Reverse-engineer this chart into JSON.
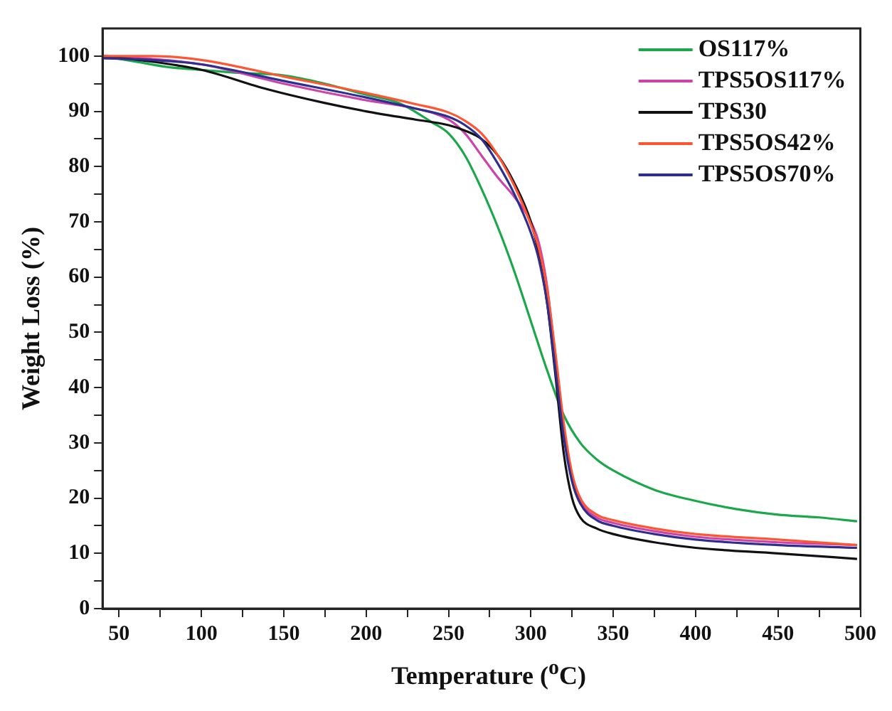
{
  "chart_data": {
    "type": "line",
    "xlabel": "Temperature ($^{o}$C)",
    "ylabel": "Weight Loss (%)",
    "xlim": [
      40,
      500
    ],
    "ylim": [
      0,
      105
    ],
    "xticks": [
      50,
      {
        "value": 75,
        "label": null
      },
      100,
      {
        "value": 125,
        "label": null
      },
      150,
      {
        "value": 175,
        "label": null
      },
      200,
      {
        "value": 225,
        "label": null
      },
      250,
      {
        "value": 275,
        "label": null
      },
      300,
      {
        "value": 325,
        "label": null
      },
      350,
      {
        "value": 375,
        "label": null
      },
      400,
      {
        "value": 425,
        "label": null
      },
      450,
      {
        "value": 475,
        "label": null
      },
      500
    ],
    "yticks": [
      0,
      {
        "value": 5,
        "label": null
      },
      10,
      {
        "value": 15,
        "label": null
      },
      20,
      {
        "value": 25,
        "label": null
      },
      30,
      {
        "value": 35,
        "label": null
      },
      40,
      {
        "value": 45,
        "label": null
      },
      50,
      {
        "value": 55,
        "label": null
      },
      60,
      {
        "value": 65,
        "label": null
      },
      70,
      {
        "value": 75,
        "label": null
      },
      80,
      {
        "value": 85,
        "label": null
      },
      90,
      {
        "value": 95,
        "label": null
      },
      100
    ],
    "grid": false,
    "legend": "top right",
    "marker": "none",
    "line_style": "solid",
    "series": [
      {
        "name": "OS117%",
        "color": "#1aa84a",
        "x": [
          40,
          60,
          80,
          100,
          120,
          150,
          175,
          200,
          220,
          240,
          250,
          260,
          270,
          280,
          290,
          300,
          310,
          320,
          330,
          340,
          350,
          375,
          400,
          425,
          450,
          475,
          498
        ],
        "values": [
          100,
          99,
          98,
          97.5,
          97,
          96.5,
          95,
          93,
          91.5,
          88,
          86,
          82,
          76,
          69,
          61,
          52,
          43,
          35,
          30,
          27,
          25,
          21.5,
          19.5,
          18,
          17,
          16.5,
          15.8
        ]
      },
      {
        "name": "TPS5OS117%",
        "color": "#cc44aa",
        "x": [
          40,
          70,
          100,
          150,
          200,
          230,
          250,
          260,
          270,
          280,
          290,
          300,
          305,
          310,
          315,
          320,
          325,
          330,
          340,
          350,
          375,
          400,
          450,
          498
        ],
        "values": [
          100,
          99.5,
          98.5,
          95,
          92,
          90.5,
          88.5,
          86,
          82,
          78,
          74.5,
          70,
          66,
          58,
          45,
          32,
          24,
          19.5,
          16.5,
          15.5,
          14,
          13,
          12,
          11.5
        ]
      },
      {
        "name": "TPS30",
        "color": "#111111",
        "x": [
          40,
          70,
          100,
          140,
          175,
          200,
          230,
          250,
          260,
          270,
          280,
          290,
          300,
          305,
          310,
          315,
          320,
          325,
          330,
          340,
          350,
          375,
          400,
          450,
          498
        ],
        "values": [
          100,
          99,
          97.5,
          94,
          91.5,
          90,
          88.5,
          87.5,
          86.5,
          85,
          82,
          77,
          70,
          64,
          55,
          42,
          28,
          20,
          16.5,
          14.5,
          13.5,
          12,
          11,
          10,
          9
        ]
      },
      {
        "name": "TPS5OS42%",
        "color": "#ff5533",
        "x": [
          40,
          70,
          100,
          150,
          200,
          230,
          250,
          260,
          270,
          280,
          290,
          300,
          305,
          310,
          315,
          320,
          325,
          330,
          340,
          350,
          375,
          400,
          450,
          498
        ],
        "values": [
          100,
          100,
          99.3,
          96.3,
          93.3,
          91.3,
          89.8,
          88.3,
          86,
          82,
          76.5,
          69.5,
          65,
          57.5,
          46,
          33.5,
          24.5,
          20,
          17,
          16,
          14.5,
          13.5,
          12.5,
          11.5
        ]
      },
      {
        "name": "TPS5OS70%",
        "color": "#2e2e8f",
        "x": [
          40,
          70,
          100,
          150,
          200,
          230,
          250,
          260,
          270,
          280,
          290,
          300,
          305,
          310,
          315,
          320,
          325,
          330,
          340,
          350,
          375,
          400,
          450,
          498
        ],
        "values": [
          99.6,
          99.3,
          98.5,
          95.5,
          92.5,
          90.5,
          89,
          87.5,
          85,
          80.5,
          75,
          68,
          63,
          55,
          43,
          31,
          23,
          19,
          16,
          15,
          13.5,
          12.5,
          11.5,
          11
        ]
      }
    ]
  }
}
